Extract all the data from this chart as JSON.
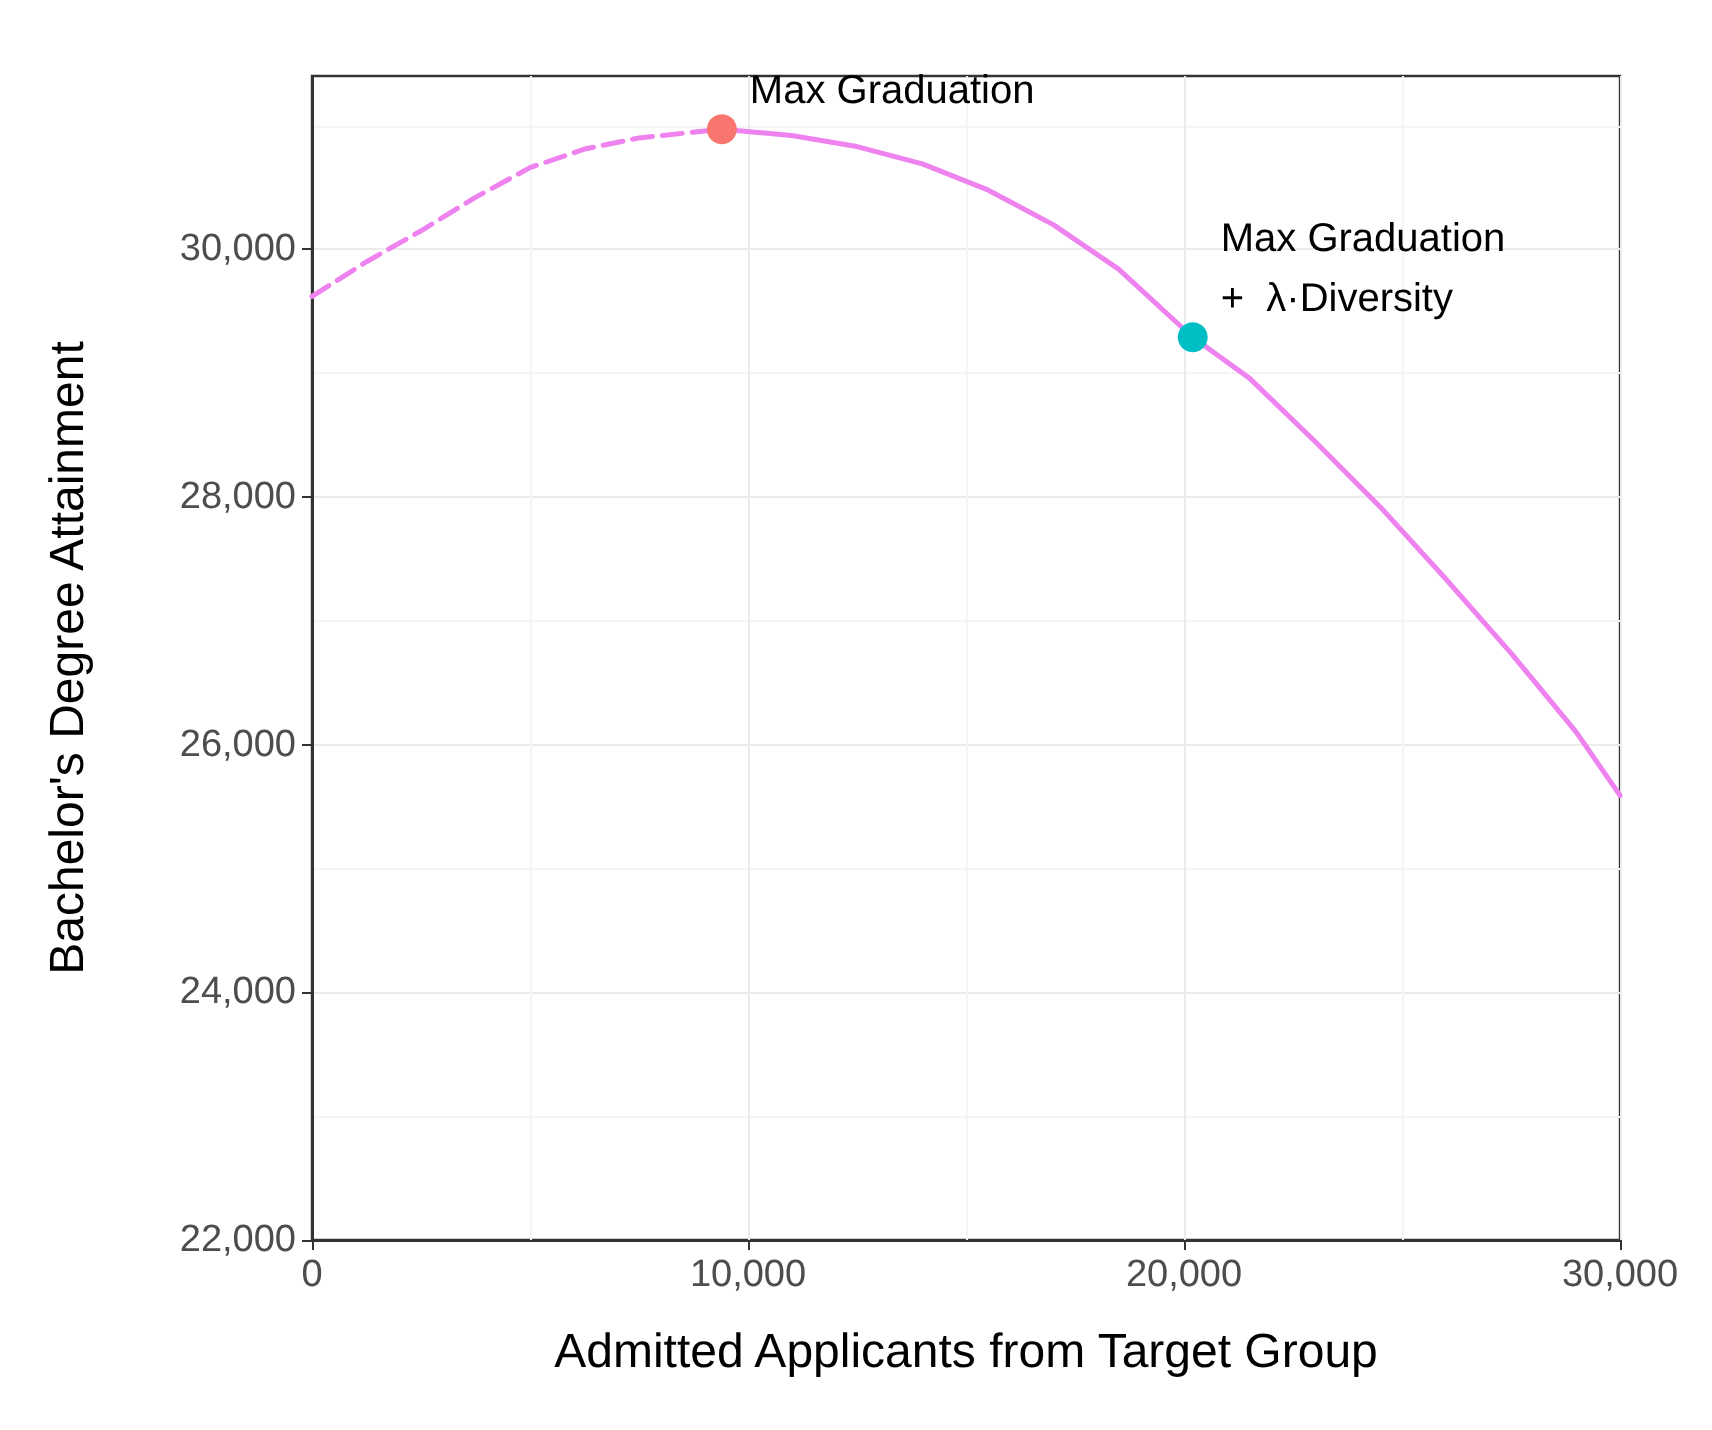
{
  "chart_data": {
    "type": "line",
    "xlabel": "Admitted Applicants from Target Group",
    "ylabel": "Bachelor's Degree Attainment",
    "xlim": [
      0,
      30000
    ],
    "xticks": [
      0,
      {
        "value": 10000,
        "label": "10,000"
      },
      {
        "value": 20000,
        "label": "20,000"
      },
      {
        "value": 30000,
        "label": "30,000"
      }
    ],
    "ylim": [
      22000,
      31400
    ],
    "yticks": [
      {
        "value": 22000,
        "label": "22,000"
      },
      {
        "value": 24000,
        "label": "24,000"
      },
      {
        "value": 26000,
        "label": "26,000"
      },
      {
        "value": 28000,
        "label": "28,000"
      },
      {
        "value": 30000,
        "label": "30,000"
      }
    ],
    "grid": true,
    "marker": "none",
    "series": [
      {
        "color": "#ee82ee",
        "line_style": "dashed",
        "x": [
          0,
          1250,
          2500,
          3750,
          5000,
          6250,
          7500,
          9400
        ],
        "values": [
          29620,
          29900,
          30150,
          30420,
          30660,
          30810,
          30900,
          30970
        ]
      },
      {
        "color": "#ee82ee",
        "line_style": "solid",
        "x": [
          9400,
          11000,
          12500,
          14000,
          15500,
          17000,
          18500,
          20200,
          21500,
          23000,
          24500,
          26000,
          27500,
          29000,
          30000
        ],
        "values": [
          30970,
          30920,
          30830,
          30690,
          30480,
          30200,
          29840,
          29290,
          28960,
          28450,
          27920,
          27340,
          26740,
          26100,
          25590
        ]
      },
      {
        "type": "scatter",
        "marker": "circle",
        "color": "#f8766d",
        "x": [
          9400
        ],
        "values": [
          30970
        ]
      },
      {
        "type": "scatter",
        "marker": "circle",
        "color": "#00bfc4",
        "x": [
          20200
        ],
        "values": [
          29290
        ]
      }
    ],
    "annotations": [
      {
        "text": "Max Graduation",
        "x": 9400,
        "y": 30970
      },
      {
        "text": "Max Graduation\n+  λ·Diversity",
        "x": 20200,
        "y": 29290
      }
    ]
  }
}
